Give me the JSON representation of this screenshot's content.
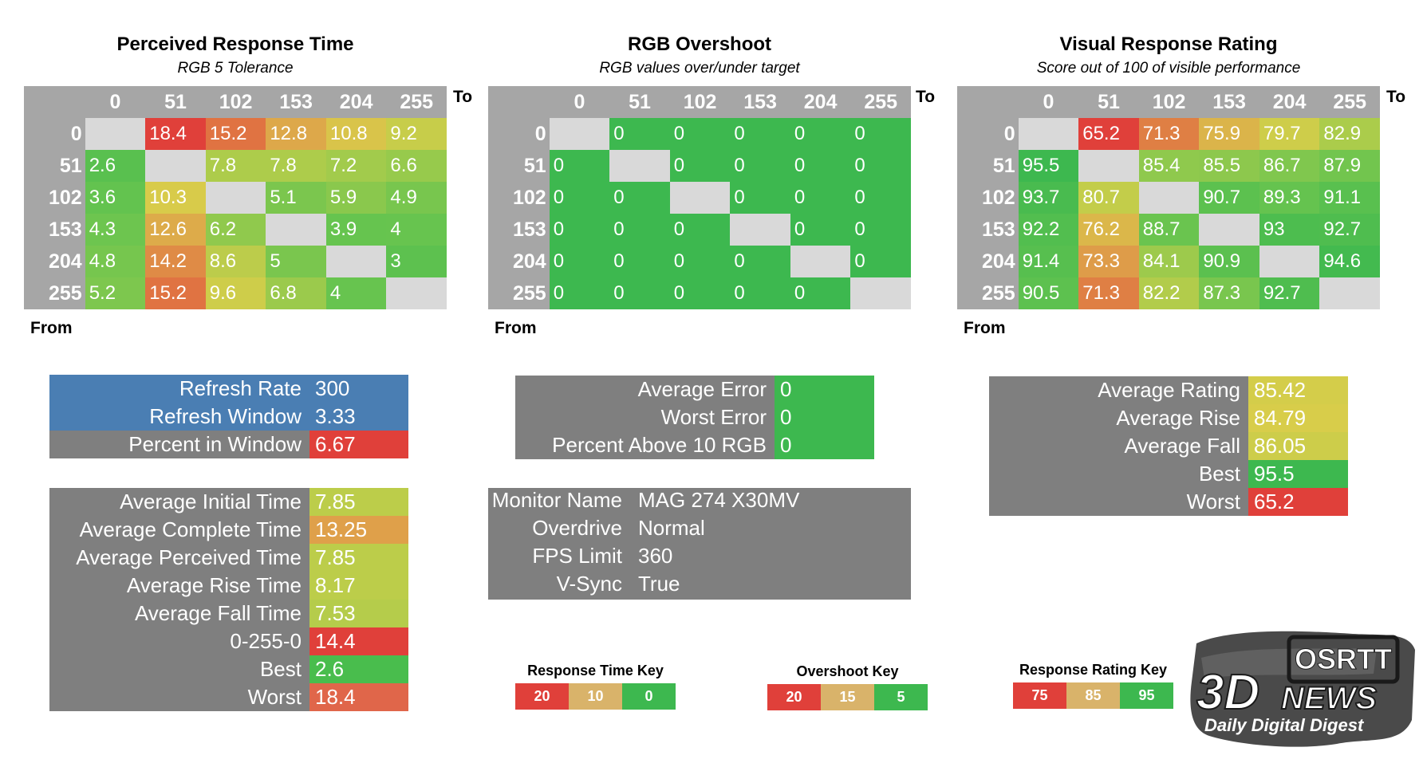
{
  "levels": [
    "0",
    "51",
    "102",
    "153",
    "204",
    "255"
  ],
  "axis": {
    "to": "To",
    "from": "From"
  },
  "chart_data": [
    {
      "type": "heatmap",
      "title": "Perceived Response Time",
      "subtitle": "RGB 5 Tolerance",
      "x_label": "To",
      "y_label": "From",
      "rows": [
        [
          null,
          18.4,
          15.2,
          12.8,
          10.8,
          9.2
        ],
        [
          2.6,
          null,
          7.8,
          7.8,
          7.2,
          6.6
        ],
        [
          3.6,
          10.3,
          null,
          5.1,
          5.9,
          4.9
        ],
        [
          4.3,
          12.6,
          6.2,
          null,
          3.9,
          4
        ],
        [
          4.8,
          14.2,
          8.6,
          5,
          null,
          3
        ],
        [
          5.2,
          15.2,
          9.6,
          6.8,
          4,
          null
        ]
      ],
      "scale": [
        20,
        10,
        0
      ]
    },
    {
      "type": "heatmap",
      "title": "RGB Overshoot",
      "subtitle": "RGB values over/under target",
      "x_label": "To",
      "y_label": "From",
      "rows": [
        [
          null,
          0,
          0,
          0,
          0,
          0
        ],
        [
          0,
          null,
          0,
          0,
          0,
          0
        ],
        [
          0,
          0,
          null,
          0,
          0,
          0
        ],
        [
          0,
          0,
          0,
          null,
          0,
          0
        ],
        [
          0,
          0,
          0,
          0,
          null,
          0
        ],
        [
          0,
          0,
          0,
          0,
          0,
          null
        ]
      ],
      "scale": [
        20,
        15,
        5
      ]
    },
    {
      "type": "heatmap",
      "title": "Visual Response Rating",
      "subtitle": "Score out of 100 of visible performance",
      "x_label": "To",
      "y_label": "From",
      "rows": [
        [
          null,
          65.2,
          71.3,
          75.9,
          79.7,
          82.9
        ],
        [
          95.5,
          null,
          85.4,
          85.5,
          86.7,
          87.9
        ],
        [
          93.7,
          80.7,
          null,
          90.7,
          89.3,
          91.1
        ],
        [
          92.2,
          76.2,
          88.7,
          null,
          93,
          92.7
        ],
        [
          91.4,
          73.3,
          84.1,
          90.9,
          null,
          94.6
        ],
        [
          90.5,
          71.3,
          82.2,
          87.3,
          92.7,
          null
        ]
      ],
      "scale": [
        75,
        85,
        95
      ]
    }
  ],
  "colors": {
    "gray": "#7f7f7f",
    "header_gray": "#a6a6a6",
    "diag": "#d9d9d9",
    "blue": "#4a7eb3",
    "red": "#e0403a",
    "orange": "#dfa04a",
    "yellow": "#d8cd4a",
    "green": "#3db84f"
  },
  "refresh": {
    "rows": [
      {
        "label": "Refresh Rate",
        "value": "300",
        "color": "#4a7eb3"
      },
      {
        "label": "Refresh Window",
        "value": "3.33",
        "color": "#4a7eb3"
      },
      {
        "label": "Percent in Window",
        "value": "6.67",
        "color": "#e0403a"
      }
    ]
  },
  "times": {
    "rows": [
      {
        "label": "Average Initial Time",
        "value": "7.85",
        "color": "#bccd4a"
      },
      {
        "label": "Average Complete Time",
        "value": "13.25",
        "color": "#dfa04a"
      },
      {
        "label": "Average Perceived Time",
        "value": "7.85",
        "color": "#bccd4a"
      },
      {
        "label": "Average Rise Time",
        "value": "8.17",
        "color": "#bccd4a"
      },
      {
        "label": "Average Fall Time",
        "value": "7.53",
        "color": "#b5cc4b"
      },
      {
        "label": "0-255-0",
        "value": "14.4",
        "color": "#e0403a"
      },
      {
        "label": "Best",
        "value": "2.6",
        "color": "#49bd4d"
      },
      {
        "label": "Worst",
        "value": "18.4",
        "color": "#e0664a"
      }
    ]
  },
  "overshoot_stats": {
    "rows": [
      {
        "label": "Average Error",
        "value": "0",
        "color": "#3db84f"
      },
      {
        "label": "Worst Error",
        "value": "0",
        "color": "#3db84f"
      },
      {
        "label": "Percent Above 10 RGB",
        "value": "0",
        "color": "#3db84f"
      }
    ]
  },
  "monitor": {
    "rows": [
      {
        "label": "Monitor Name",
        "value": "MAG 274 X30MV"
      },
      {
        "label": "Overdrive",
        "value": "Normal"
      },
      {
        "label": "FPS Limit",
        "value": "360"
      },
      {
        "label": "V-Sync",
        "value": "True"
      }
    ]
  },
  "rating_stats": {
    "rows": [
      {
        "label": "Average Rating",
        "value": "85.42",
        "color": "#d4cd4a"
      },
      {
        "label": "Average Rise",
        "value": "84.79",
        "color": "#d8cd4a"
      },
      {
        "label": "Average Fall",
        "value": "86.05",
        "color": "#cdcd4a"
      },
      {
        "label": "Best",
        "value": "95.5",
        "color": "#3db84f"
      },
      {
        "label": "Worst",
        "value": "65.2",
        "color": "#e0403a"
      }
    ]
  },
  "keys": [
    {
      "title": "Response Time Key",
      "items": [
        {
          "label": "20",
          "color": "#e0403a"
        },
        {
          "label": "10",
          "color": "#d9b36a"
        },
        {
          "label": "0",
          "color": "#3db84f"
        }
      ]
    },
    {
      "title": "Overshoot Key",
      "items": [
        {
          "label": "20",
          "color": "#e0403a"
        },
        {
          "label": "15",
          "color": "#d9b36a"
        },
        {
          "label": "5",
          "color": "#3db84f"
        }
      ]
    },
    {
      "title": "Response Rating Key",
      "items": [
        {
          "label": "75",
          "color": "#e0403a"
        },
        {
          "label": "85",
          "color": "#d9b36a"
        },
        {
          "label": "95",
          "color": "#3db84f"
        }
      ]
    }
  ],
  "logo": {
    "brand": "3DNEWS",
    "badge": "OSRTT",
    "tagline": "Daily Digital Digest"
  }
}
